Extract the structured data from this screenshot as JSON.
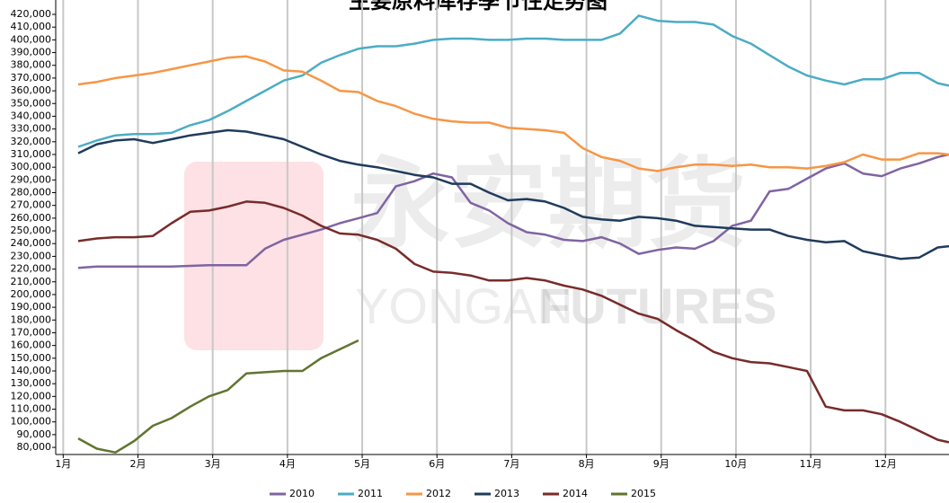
{
  "chart_data": {
    "type": "line",
    "title": "主要原料库存季节性走势图",
    "watermark": {
      "cn": "永安期货",
      "en1": "YONGAN",
      "en2": "FUTURES"
    },
    "x": [
      1.2,
      1.45,
      1.7,
      1.95,
      2.2,
      2.45,
      2.7,
      2.95,
      3.2,
      3.45,
      3.7,
      3.95,
      4.2,
      4.45,
      4.7,
      4.95,
      5.2,
      5.45,
      5.7,
      5.95,
      6.2,
      6.45,
      6.7,
      6.95,
      7.2,
      7.45,
      7.7,
      7.95,
      8.2,
      8.45,
      8.7,
      8.95,
      9.2,
      9.45,
      9.7,
      9.95,
      10.2,
      10.45,
      10.7,
      10.95,
      11.2,
      11.45,
      11.7,
      11.95,
      12.2,
      12.45,
      12.7,
      12.85
    ],
    "xlim": [
      0.9,
      12.85
    ],
    "xticks": [
      {
        "value": 1,
        "label": "1月"
      },
      {
        "value": 2,
        "label": "2月"
      },
      {
        "value": 3,
        "label": "3月"
      },
      {
        "value": 4,
        "label": "4月"
      },
      {
        "value": 5,
        "label": "5月"
      },
      {
        "value": 6,
        "label": "6月"
      },
      {
        "value": 7,
        "label": "7月"
      },
      {
        "value": 8,
        "label": "8月"
      },
      {
        "value": 9,
        "label": "9月"
      },
      {
        "value": 10,
        "label": "10月"
      },
      {
        "value": 11,
        "label": "11月"
      },
      {
        "value": 12,
        "label": "12月"
      }
    ],
    "ylim": [
      74400,
      431300
    ],
    "yticks": [
      {
        "value": 80000,
        "label": "80,000"
      },
      {
        "value": 90000,
        "label": "90,000"
      },
      {
        "value": 100000,
        "label": "100,000"
      },
      {
        "value": 110000,
        "label": "110,000"
      },
      {
        "value": 120000,
        "label": "120,000"
      },
      {
        "value": 130000,
        "label": "130,000"
      },
      {
        "value": 140000,
        "label": "140,000"
      },
      {
        "value": 150000,
        "label": "150,000"
      },
      {
        "value": 160000,
        "label": "160,000"
      },
      {
        "value": 170000,
        "label": "170,000"
      },
      {
        "value": 180000,
        "label": "180,000"
      },
      {
        "value": 190000,
        "label": "190,000"
      },
      {
        "value": 200000,
        "label": "200,000"
      },
      {
        "value": 210000,
        "label": "210,000"
      },
      {
        "value": 220000,
        "label": "220,000"
      },
      {
        "value": 230000,
        "label": "230,000"
      },
      {
        "value": 240000,
        "label": "240,000"
      },
      {
        "value": 250000,
        "label": "250,000"
      },
      {
        "value": 260000,
        "label": "260,000"
      },
      {
        "value": 270000,
        "label": "270,000"
      },
      {
        "value": 280000,
        "label": "280,000"
      },
      {
        "value": 290000,
        "label": "290,000"
      },
      {
        "value": 300000,
        "label": "300,000"
      },
      {
        "value": 310000,
        "label": "310,000"
      },
      {
        "value": 320000,
        "label": "320,000"
      },
      {
        "value": 330000,
        "label": "330,000"
      },
      {
        "value": 340000,
        "label": "340,000"
      },
      {
        "value": 350000,
        "label": "350,000"
      },
      {
        "value": 360000,
        "label": "360,000"
      },
      {
        "value": 370000,
        "label": "370,000"
      },
      {
        "value": 380000,
        "label": "380,000"
      },
      {
        "value": 390000,
        "label": "390,000"
      },
      {
        "value": 400000,
        "label": "400,000"
      },
      {
        "value": 410000,
        "label": "410,000"
      },
      {
        "value": 420000,
        "label": "420,000"
      }
    ],
    "grid": "x",
    "legend": "bottom",
    "series": [
      {
        "name": "2010",
        "color": "#8064a2",
        "values": [
          221000,
          222000,
          222000,
          222000,
          222000,
          222000,
          222500,
          223000,
          223000,
          223000,
          236000,
          243000,
          247000,
          251000,
          256000,
          260000,
          264000,
          285000,
          289000,
          295000,
          292000,
          272000,
          266000,
          256000,
          249000,
          247000,
          243000,
          242000,
          245000,
          240000,
          232000,
          235000,
          237000,
          236000,
          242000,
          254000,
          258000,
          281000,
          283000,
          291000,
          299000,
          303000,
          295000,
          293000,
          299000,
          303000,
          308000,
          310000
        ]
      },
      {
        "name": "2011",
        "color": "#4bacc6",
        "values": [
          316000,
          321000,
          325000,
          326000,
          326000,
          327000,
          333000,
          337000,
          344000,
          352000,
          360000,
          368000,
          372000,
          382000,
          388000,
          393000,
          395000,
          395000,
          397000,
          400000,
          401000,
          401000,
          400000,
          400000,
          401000,
          401000,
          400000,
          400000,
          400000,
          405000,
          419000,
          415000,
          414000,
          414000,
          412000,
          403000,
          397000,
          388000,
          379000,
          372000,
          368000,
          365000,
          369000,
          369000,
          374000,
          374000,
          366000,
          364000
        ]
      },
      {
        "name": "2012",
        "color": "#f79646",
        "values": [
          365000,
          367000,
          370000,
          372000,
          374000,
          377000,
          380000,
          383000,
          386000,
          387000,
          383000,
          376000,
          375000,
          368000,
          360000,
          359000,
          352000,
          348000,
          342000,
          338000,
          336000,
          335000,
          335000,
          331000,
          330000,
          329000,
          327000,
          315000,
          308000,
          305000,
          299000,
          297000,
          300000,
          302000,
          302000,
          301000,
          302000,
          300000,
          300000,
          299000,
          301000,
          304000,
          310000,
          306000,
          306000,
          311000,
          311000,
          310000
        ]
      },
      {
        "name": "2013",
        "color": "#1f3b5c",
        "values": [
          311000,
          318000,
          321000,
          322000,
          319000,
          322000,
          325000,
          327000,
          329000,
          328000,
          325000,
          322000,
          316000,
          310000,
          305000,
          302000,
          300000,
          297000,
          294000,
          292000,
          287000,
          287000,
          280000,
          274000,
          275000,
          273000,
          268000,
          261000,
          259000,
          258000,
          261000,
          260000,
          258000,
          254000,
          253000,
          252000,
          251000,
          251000,
          246000,
          243000,
          241000,
          242000,
          234000,
          231000,
          228000,
          229000,
          237000,
          238000
        ]
      },
      {
        "name": "2014",
        "color": "#772c2a",
        "values": [
          242000,
          244000,
          245000,
          245000,
          246000,
          256000,
          265000,
          266000,
          269000,
          273000,
          272000,
          268000,
          262000,
          254000,
          248000,
          247000,
          243000,
          236000,
          224000,
          218000,
          217000,
          215000,
          211000,
          211000,
          213000,
          211000,
          207000,
          204000,
          199000,
          192000,
          185000,
          181000,
          172000,
          164000,
          155000,
          150000,
          147000,
          146000,
          143000,
          140000,
          112000,
          109000,
          109000,
          106000,
          100000,
          93000,
          86000,
          84000
        ]
      },
      {
        "name": "2015",
        "color": "#5f7530",
        "values": [
          87000,
          79000,
          76000,
          85000,
          97000,
          103000,
          112000,
          120000,
          125000,
          138000,
          139000,
          140000,
          140000,
          150000,
          157000,
          164000,
          null,
          null,
          null,
          null,
          null,
          null,
          null,
          null,
          null,
          null,
          null,
          null,
          null,
          null,
          null,
          null,
          null,
          null,
          null,
          null,
          null,
          null,
          null,
          null,
          null,
          null,
          null,
          null,
          null,
          null,
          null,
          null
        ]
      }
    ]
  }
}
